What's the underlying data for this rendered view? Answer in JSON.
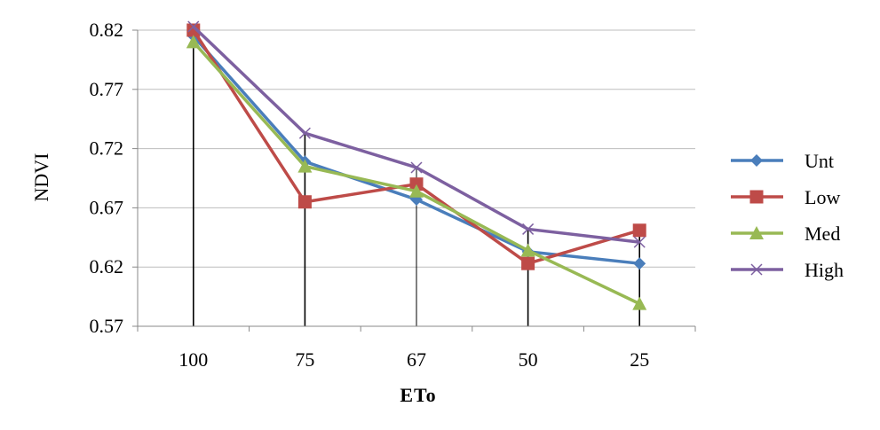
{
  "chart_data": {
    "type": "line",
    "title": "",
    "xlabel": "ETo",
    "ylabel": "NDVI",
    "categories": [
      "100",
      "75",
      "67",
      "50",
      "25"
    ],
    "y_ticks": [
      "0.57",
      "0.62",
      "0.67",
      "0.72",
      "0.77",
      "0.82"
    ],
    "ylim": [
      0.57,
      0.82
    ],
    "grid": "horizontal",
    "legend_position": "right",
    "series": [
      {
        "name": "Unt",
        "values": [
          0.815,
          0.709,
          0.677,
          0.633,
          0.623
        ],
        "color": "#4a7ebb",
        "marker": "diamond"
      },
      {
        "name": "Low",
        "values": [
          0.82,
          0.675,
          0.69,
          0.623,
          0.651
        ],
        "color": "#be4b48",
        "marker": "square"
      },
      {
        "name": "Med",
        "values": [
          0.81,
          0.705,
          0.684,
          0.634,
          0.589
        ],
        "color": "#98b954",
        "marker": "triangle"
      },
      {
        "name": "High",
        "values": [
          0.823,
          0.733,
          0.704,
          0.652,
          0.641
        ],
        "color": "#7d60a0",
        "marker": "x"
      }
    ]
  }
}
